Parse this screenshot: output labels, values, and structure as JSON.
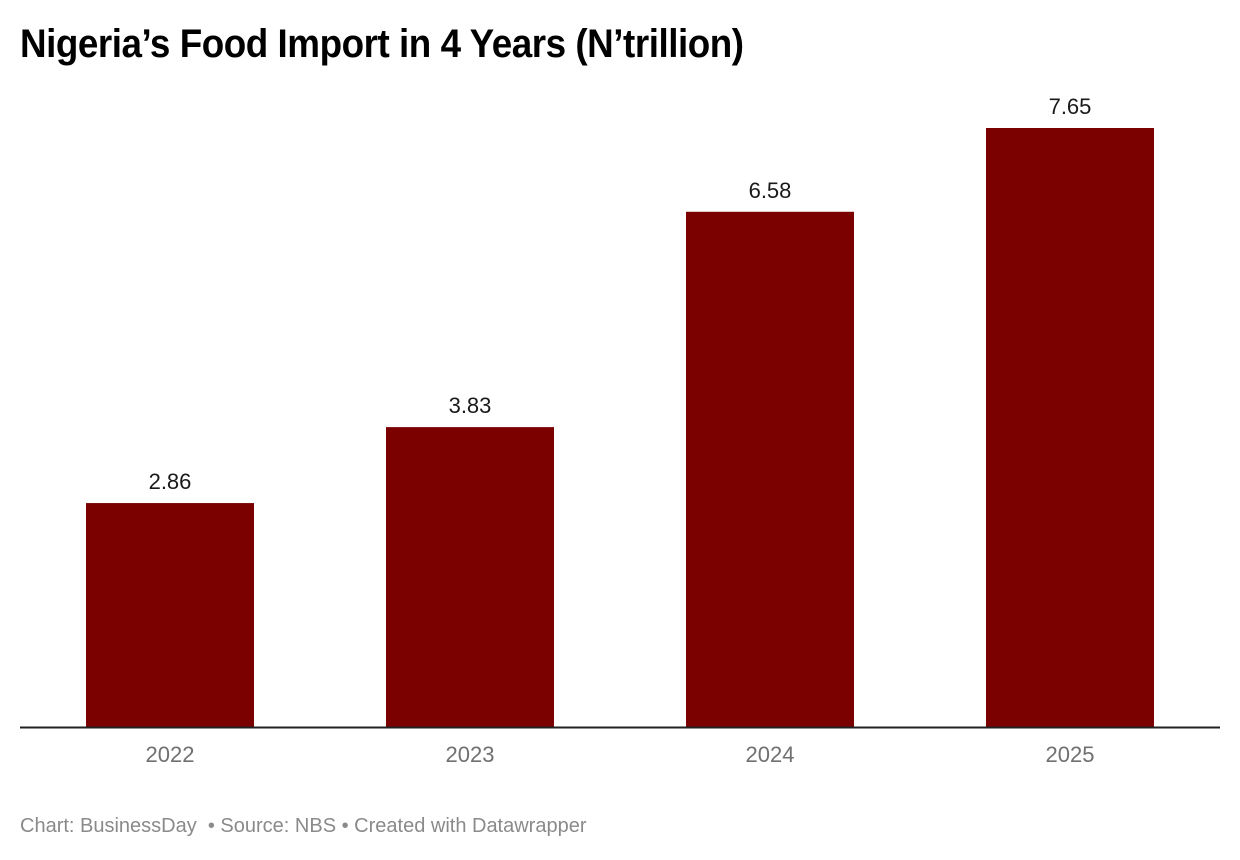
{
  "chart_data": {
    "type": "bar",
    "title": "Nigeria’s Food Import in 4 Years (N’trillion)",
    "categories": [
      "2022",
      "2023",
      "2024",
      "2025"
    ],
    "values": [
      2.86,
      3.83,
      6.58,
      7.65
    ],
    "value_labels": [
      "2.86",
      "3.83",
      "6.58",
      "7.65"
    ],
    "xlabel": "",
    "ylabel": "",
    "ylim": [
      0,
      7.65
    ],
    "grid": false,
    "legend": "none",
    "bar_color": "#7b0000"
  },
  "footer": {
    "chart_credit": "Chart: BusinessDay",
    "source": " • Source: NBS",
    "created": " • Created with Datawrapper"
  }
}
